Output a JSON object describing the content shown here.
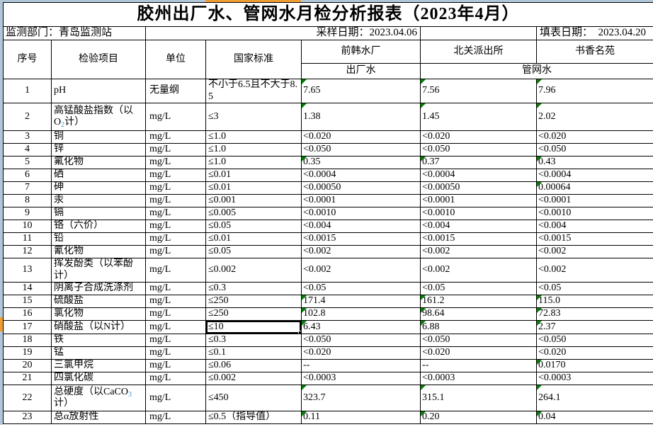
{
  "title": "胶州出厂水、管网水月检分析报表（2023年4月）",
  "info": {
    "department": "监测部门：青岛监测站",
    "sample_date": "采样日期：2023.04.06",
    "fill_date": "填表日期：  2023.04.20"
  },
  "header": {
    "seq": "序号",
    "item": "检验项目",
    "unit": "单位",
    "standard": "国家标准",
    "plants": [
      "前韩水厂",
      "北关派出所",
      "书香名苑"
    ],
    "water_types": {
      "factory": "出厂水",
      "pipe": "管网水"
    }
  },
  "selection": {
    "row_seq": "17",
    "column": "国家标准",
    "value": "≤10"
  },
  "colors": {
    "header_strip_blue": "#b2c6da",
    "selection_highlight_orange": "#ed9d31",
    "text_flag_green": "#008000",
    "subscript_blue": "#2f9bd8"
  },
  "rows": [
    {
      "seq": "1",
      "item": "pH",
      "unit": "无量纲",
      "standard": "不小于6.5且不大于8.5",
      "values": [
        "7.65",
        "7.56",
        "7.96"
      ],
      "flags": [
        1,
        1,
        1
      ]
    },
    {
      "seq": "2",
      "item_parts": [
        [
          "高锰酸盐指数（以"
        ],
        [
          "\n"
        ],
        [
          "O"
        ],
        [
          "2",
          "sub"
        ],
        [
          "计）"
        ]
      ],
      "unit": "mg/L",
      "standard": "≤3",
      "values": [
        "1.38",
        "1.45",
        "2.02"
      ],
      "flags": [
        1,
        1,
        1
      ]
    },
    {
      "seq": "3",
      "item": "铜",
      "unit": "mg/L",
      "standard": "≤1.0",
      "values": [
        "<0.020",
        "<0.020",
        "<0.020"
      ],
      "flags": [
        0,
        0,
        0
      ]
    },
    {
      "seq": "4",
      "item": "锌",
      "unit": "mg/L",
      "standard": "≤1.0",
      "values": [
        "<0.050",
        "<0.050",
        "<0.050"
      ],
      "flags": [
        0,
        0,
        0
      ]
    },
    {
      "seq": "5",
      "item": "氟化物",
      "unit": "mg/L",
      "standard": "≤1.0",
      "values": [
        "0.35",
        "0.37",
        "0.43"
      ],
      "flags": [
        1,
        1,
        1
      ]
    },
    {
      "seq": "6",
      "item": "硒",
      "unit": "mg/L",
      "standard": "≤0.01",
      "values": [
        "<0.0004",
        "<0.0004",
        "<0.0004"
      ],
      "flags": [
        0,
        0,
        0
      ]
    },
    {
      "seq": "7",
      "item": "砷",
      "unit": "mg/L",
      "standard": "≤0.01",
      "values": [
        "<0.00050",
        "<0.00050",
        "0.00064"
      ],
      "flags": [
        0,
        0,
        1
      ]
    },
    {
      "seq": "8",
      "item": "汞",
      "unit": "mg/L",
      "standard": "≤0.001",
      "values": [
        "<0.0001",
        "<0.0001",
        "<0.0001"
      ],
      "flags": [
        0,
        0,
        0
      ]
    },
    {
      "seq": "9",
      "item": "镉",
      "unit": "mg/L",
      "standard": "≤0.005",
      "values": [
        "<0.0010",
        "<0.0010",
        "<0.0010"
      ],
      "flags": [
        0,
        0,
        0
      ]
    },
    {
      "seq": "10",
      "item": "铬（六价）",
      "unit": "mg/L",
      "standard": "≤0.05",
      "values": [
        "<0.004",
        "<0.004",
        "<0.004"
      ],
      "flags": [
        0,
        0,
        0
      ]
    },
    {
      "seq": "11",
      "item": "铅",
      "unit": "mg/L",
      "standard": "≤0.01",
      "values": [
        "<0.0015",
        "<0.0015",
        "<0.0015"
      ],
      "flags": [
        0,
        0,
        0
      ]
    },
    {
      "seq": "12",
      "item": "氰化物",
      "unit": "mg/L",
      "standard": "≤0.05",
      "values": [
        "<0.002",
        "<0.002",
        "<0.002"
      ],
      "flags": [
        0,
        0,
        0
      ]
    },
    {
      "seq": "13",
      "item_parts": [
        [
          "挥发酚类（以苯酚"
        ],
        [
          "\n"
        ],
        [
          "计）"
        ]
      ],
      "unit": "mg/L",
      "standard": "≤0.002",
      "values": [
        "<0.002",
        "<0.002",
        "<0.002"
      ],
      "flags": [
        0,
        0,
        0
      ]
    },
    {
      "seq": "14",
      "item": "阴离子合成洗涤剂",
      "unit": "mg/L",
      "standard": "≤0.3",
      "values": [
        "<0.05",
        "<0.05",
        "<0.05"
      ],
      "flags": [
        0,
        0,
        0
      ]
    },
    {
      "seq": "15",
      "item": "硫酸盐",
      "unit": "mg/L",
      "standard": "≤250",
      "values": [
        "171.4",
        "161.2",
        "115.0"
      ],
      "flags": [
        1,
        1,
        1
      ]
    },
    {
      "seq": "16",
      "item": "氯化物",
      "unit": "mg/L",
      "standard": "≤250",
      "values": [
        "102.8",
        "98.64",
        "72.83"
      ],
      "flags": [
        1,
        1,
        1
      ]
    },
    {
      "seq": "17",
      "item": "硝酸盐（以N计）",
      "unit": "mg/L",
      "standard": "≤10",
      "selected": true,
      "values": [
        "6.43",
        "6.88",
        "2.37"
      ],
      "flags": [
        1,
        1,
        1
      ]
    },
    {
      "seq": "18",
      "item": "铁",
      "unit": "mg/L",
      "standard": "≤0.3",
      "values": [
        "<0.050",
        "<0.050",
        "<0.050"
      ],
      "flags": [
        0,
        0,
        0
      ]
    },
    {
      "seq": "19",
      "item": "锰",
      "unit": "mg/L",
      "standard": "≤0.1",
      "values": [
        "<0.020",
        "<0.020",
        "<0.020"
      ],
      "flags": [
        0,
        0,
        0
      ]
    },
    {
      "seq": "20",
      "item": "三氯甲烷",
      "unit": "mg/L",
      "standard": "≤0.06",
      "values": [
        "--",
        "--",
        "0.0170"
      ],
      "flags": [
        0,
        0,
        1
      ]
    },
    {
      "seq": "21",
      "item": "四氯化碳",
      "unit": "mg/L",
      "standard": "≤0.002",
      "values": [
        "<0.0003",
        "<0.0003",
        "<0.0003"
      ],
      "flags": [
        0,
        0,
        0
      ]
    },
    {
      "seq": "22",
      "item_parts": [
        [
          "总硬度（以CaCO"
        ],
        [
          "3",
          "sub"
        ],
        [
          "\n"
        ],
        [
          "计）"
        ]
      ],
      "unit": "mg/L",
      "standard": "≤450",
      "values": [
        "323.7",
        "315.1",
        "264.1"
      ],
      "flags": [
        1,
        1,
        1
      ]
    },
    {
      "seq": "23",
      "item": "总α放射性",
      "unit": "mg/L",
      "standard": "≤0.5（指导值）",
      "values": [
        "0.11",
        "0.20",
        "0.04"
      ],
      "flags": [
        1,
        1,
        1
      ]
    }
  ]
}
